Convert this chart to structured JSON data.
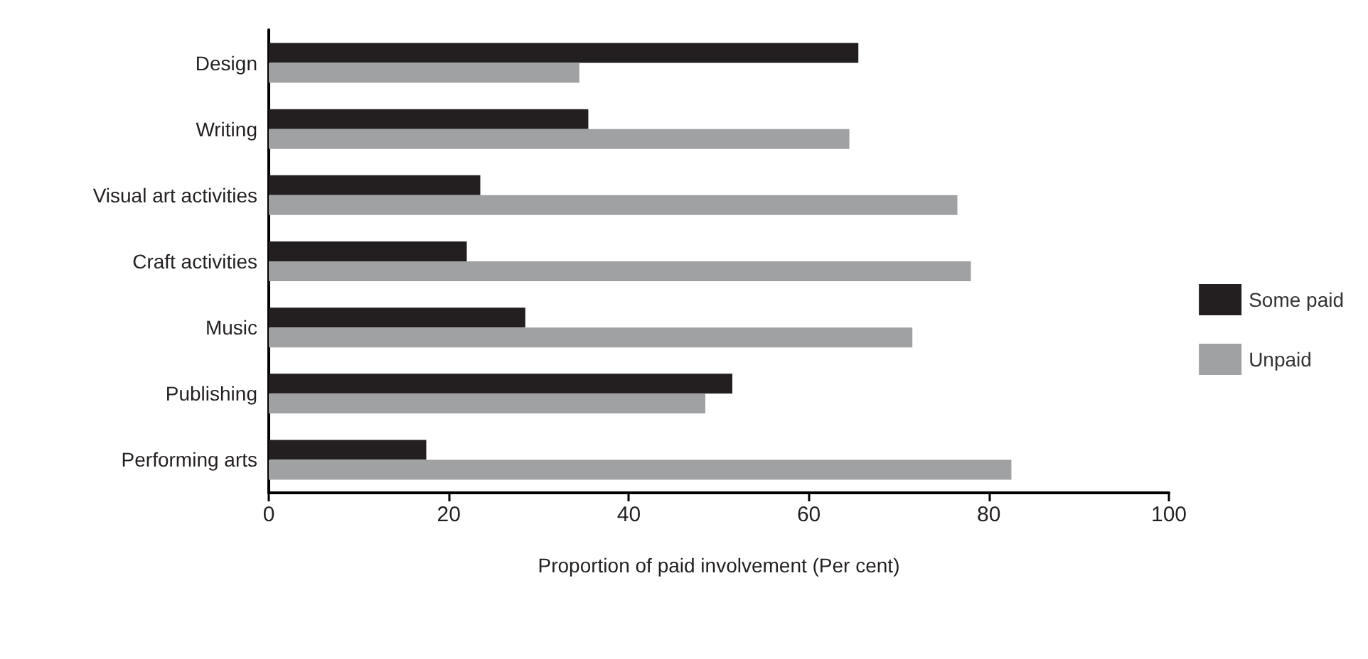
{
  "chart_data": {
    "type": "bar",
    "orientation": "horizontal",
    "xlabel": "Proportion of paid involvement (Per cent)",
    "categories": [
      "Design",
      "Writing",
      "Visual art activities",
      "Craft activities",
      "Music",
      "Publishing",
      "Performing arts"
    ],
    "series": [
      {
        "name": "Some paid",
        "color": "#231f20",
        "values": [
          65.5,
          35.5,
          23.5,
          22,
          28.5,
          51.5,
          17.5
        ]
      },
      {
        "name": "Unpaid",
        "color": "#a0a1a3",
        "values": [
          34.5,
          64.5,
          76.5,
          78,
          71.5,
          48.5,
          82.5
        ]
      }
    ],
    "xlim": [
      0,
      100
    ],
    "xticks": [
      0,
      20,
      40,
      60,
      80,
      100
    ],
    "grid": false,
    "legend": "right"
  }
}
